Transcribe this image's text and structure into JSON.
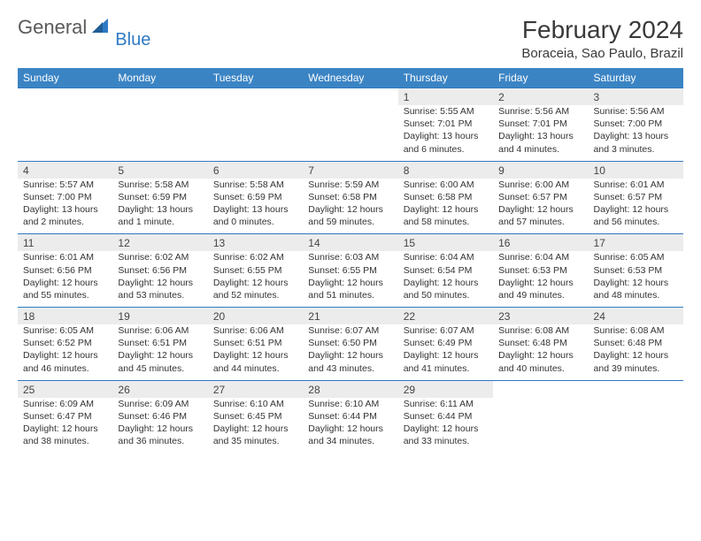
{
  "brand": {
    "part1": "General",
    "part2": "Blue"
  },
  "title": "February 2024",
  "location": "Boraceia, Sao Paulo, Brazil",
  "colors": {
    "header_bg": "#3b84c4",
    "daynum_bg": "#ececec",
    "border": "#2e7ac4"
  },
  "day_headers": [
    "Sunday",
    "Monday",
    "Tuesday",
    "Wednesday",
    "Thursday",
    "Friday",
    "Saturday"
  ],
  "weeks": [
    [
      null,
      null,
      null,
      null,
      {
        "n": "1",
        "sr": "Sunrise: 5:55 AM",
        "ss": "Sunset: 7:01 PM",
        "dl": "Daylight: 13 hours and 6 minutes."
      },
      {
        "n": "2",
        "sr": "Sunrise: 5:56 AM",
        "ss": "Sunset: 7:01 PM",
        "dl": "Daylight: 13 hours and 4 minutes."
      },
      {
        "n": "3",
        "sr": "Sunrise: 5:56 AM",
        "ss": "Sunset: 7:00 PM",
        "dl": "Daylight: 13 hours and 3 minutes."
      }
    ],
    [
      {
        "n": "4",
        "sr": "Sunrise: 5:57 AM",
        "ss": "Sunset: 7:00 PM",
        "dl": "Daylight: 13 hours and 2 minutes."
      },
      {
        "n": "5",
        "sr": "Sunrise: 5:58 AM",
        "ss": "Sunset: 6:59 PM",
        "dl": "Daylight: 13 hours and 1 minute."
      },
      {
        "n": "6",
        "sr": "Sunrise: 5:58 AM",
        "ss": "Sunset: 6:59 PM",
        "dl": "Daylight: 13 hours and 0 minutes."
      },
      {
        "n": "7",
        "sr": "Sunrise: 5:59 AM",
        "ss": "Sunset: 6:58 PM",
        "dl": "Daylight: 12 hours and 59 minutes."
      },
      {
        "n": "8",
        "sr": "Sunrise: 6:00 AM",
        "ss": "Sunset: 6:58 PM",
        "dl": "Daylight: 12 hours and 58 minutes."
      },
      {
        "n": "9",
        "sr": "Sunrise: 6:00 AM",
        "ss": "Sunset: 6:57 PM",
        "dl": "Daylight: 12 hours and 57 minutes."
      },
      {
        "n": "10",
        "sr": "Sunrise: 6:01 AM",
        "ss": "Sunset: 6:57 PM",
        "dl": "Daylight: 12 hours and 56 minutes."
      }
    ],
    [
      {
        "n": "11",
        "sr": "Sunrise: 6:01 AM",
        "ss": "Sunset: 6:56 PM",
        "dl": "Daylight: 12 hours and 55 minutes."
      },
      {
        "n": "12",
        "sr": "Sunrise: 6:02 AM",
        "ss": "Sunset: 6:56 PM",
        "dl": "Daylight: 12 hours and 53 minutes."
      },
      {
        "n": "13",
        "sr": "Sunrise: 6:02 AM",
        "ss": "Sunset: 6:55 PM",
        "dl": "Daylight: 12 hours and 52 minutes."
      },
      {
        "n": "14",
        "sr": "Sunrise: 6:03 AM",
        "ss": "Sunset: 6:55 PM",
        "dl": "Daylight: 12 hours and 51 minutes."
      },
      {
        "n": "15",
        "sr": "Sunrise: 6:04 AM",
        "ss": "Sunset: 6:54 PM",
        "dl": "Daylight: 12 hours and 50 minutes."
      },
      {
        "n": "16",
        "sr": "Sunrise: 6:04 AM",
        "ss": "Sunset: 6:53 PM",
        "dl": "Daylight: 12 hours and 49 minutes."
      },
      {
        "n": "17",
        "sr": "Sunrise: 6:05 AM",
        "ss": "Sunset: 6:53 PM",
        "dl": "Daylight: 12 hours and 48 minutes."
      }
    ],
    [
      {
        "n": "18",
        "sr": "Sunrise: 6:05 AM",
        "ss": "Sunset: 6:52 PM",
        "dl": "Daylight: 12 hours and 46 minutes."
      },
      {
        "n": "19",
        "sr": "Sunrise: 6:06 AM",
        "ss": "Sunset: 6:51 PM",
        "dl": "Daylight: 12 hours and 45 minutes."
      },
      {
        "n": "20",
        "sr": "Sunrise: 6:06 AM",
        "ss": "Sunset: 6:51 PM",
        "dl": "Daylight: 12 hours and 44 minutes."
      },
      {
        "n": "21",
        "sr": "Sunrise: 6:07 AM",
        "ss": "Sunset: 6:50 PM",
        "dl": "Daylight: 12 hours and 43 minutes."
      },
      {
        "n": "22",
        "sr": "Sunrise: 6:07 AM",
        "ss": "Sunset: 6:49 PM",
        "dl": "Daylight: 12 hours and 41 minutes."
      },
      {
        "n": "23",
        "sr": "Sunrise: 6:08 AM",
        "ss": "Sunset: 6:48 PM",
        "dl": "Daylight: 12 hours and 40 minutes."
      },
      {
        "n": "24",
        "sr": "Sunrise: 6:08 AM",
        "ss": "Sunset: 6:48 PM",
        "dl": "Daylight: 12 hours and 39 minutes."
      }
    ],
    [
      {
        "n": "25",
        "sr": "Sunrise: 6:09 AM",
        "ss": "Sunset: 6:47 PM",
        "dl": "Daylight: 12 hours and 38 minutes."
      },
      {
        "n": "26",
        "sr": "Sunrise: 6:09 AM",
        "ss": "Sunset: 6:46 PM",
        "dl": "Daylight: 12 hours and 36 minutes."
      },
      {
        "n": "27",
        "sr": "Sunrise: 6:10 AM",
        "ss": "Sunset: 6:45 PM",
        "dl": "Daylight: 12 hours and 35 minutes."
      },
      {
        "n": "28",
        "sr": "Sunrise: 6:10 AM",
        "ss": "Sunset: 6:44 PM",
        "dl": "Daylight: 12 hours and 34 minutes."
      },
      {
        "n": "29",
        "sr": "Sunrise: 6:11 AM",
        "ss": "Sunset: 6:44 PM",
        "dl": "Daylight: 12 hours and 33 minutes."
      },
      null,
      null
    ]
  ]
}
